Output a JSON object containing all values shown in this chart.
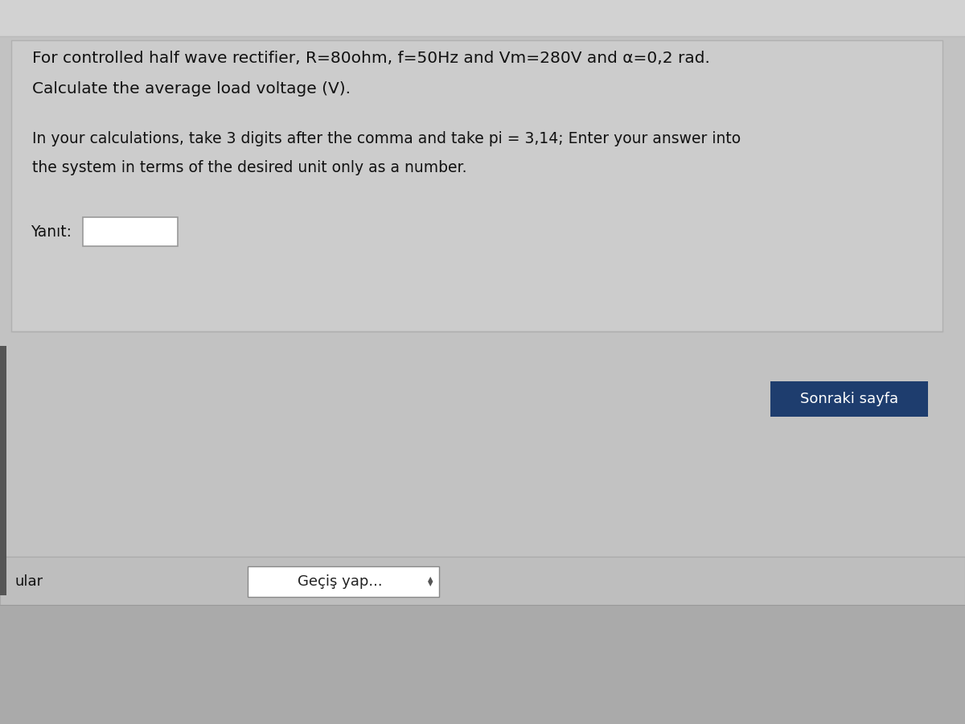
{
  "line1": "For controlled half wave rectifier, R=80ohm, f=50Hz and Vm=280V and α=0,2 rad.",
  "line2": "Calculate the average load voltage (V).",
  "line3": "In your calculations, take 3 digits after the comma and take pi = 3,14; Enter your answer into",
  "line4": "the system in terms of the desired unit only as a number.",
  "yanit_label": "Yanıt:",
  "button_text": "Sonraki sayfa",
  "button_color": "#1e3d6e",
  "button_text_color": "#ffffff",
  "dropdown_text": "Geçiş yap...",
  "left_text": "ular",
  "bg_overall": "#c2c2c2",
  "bg_top_strip": "#d2d2d2",
  "bg_question_box": "#cccccc",
  "bg_bottom_bar": "#bebebe",
  "bg_very_bottom": "#aaaaaa",
  "left_bar_color": "#555555",
  "input_box_color": "#ffffff",
  "input_box_border": "#999999",
  "dropdown_box_color": "#ffffff",
  "dropdown_box_border": "#888888",
  "font_size_line1": 14.5,
  "font_size_line2": 14.5,
  "font_size_note": 13.5,
  "font_size_yanit": 13.5,
  "font_size_button": 13,
  "font_size_bottom": 13
}
